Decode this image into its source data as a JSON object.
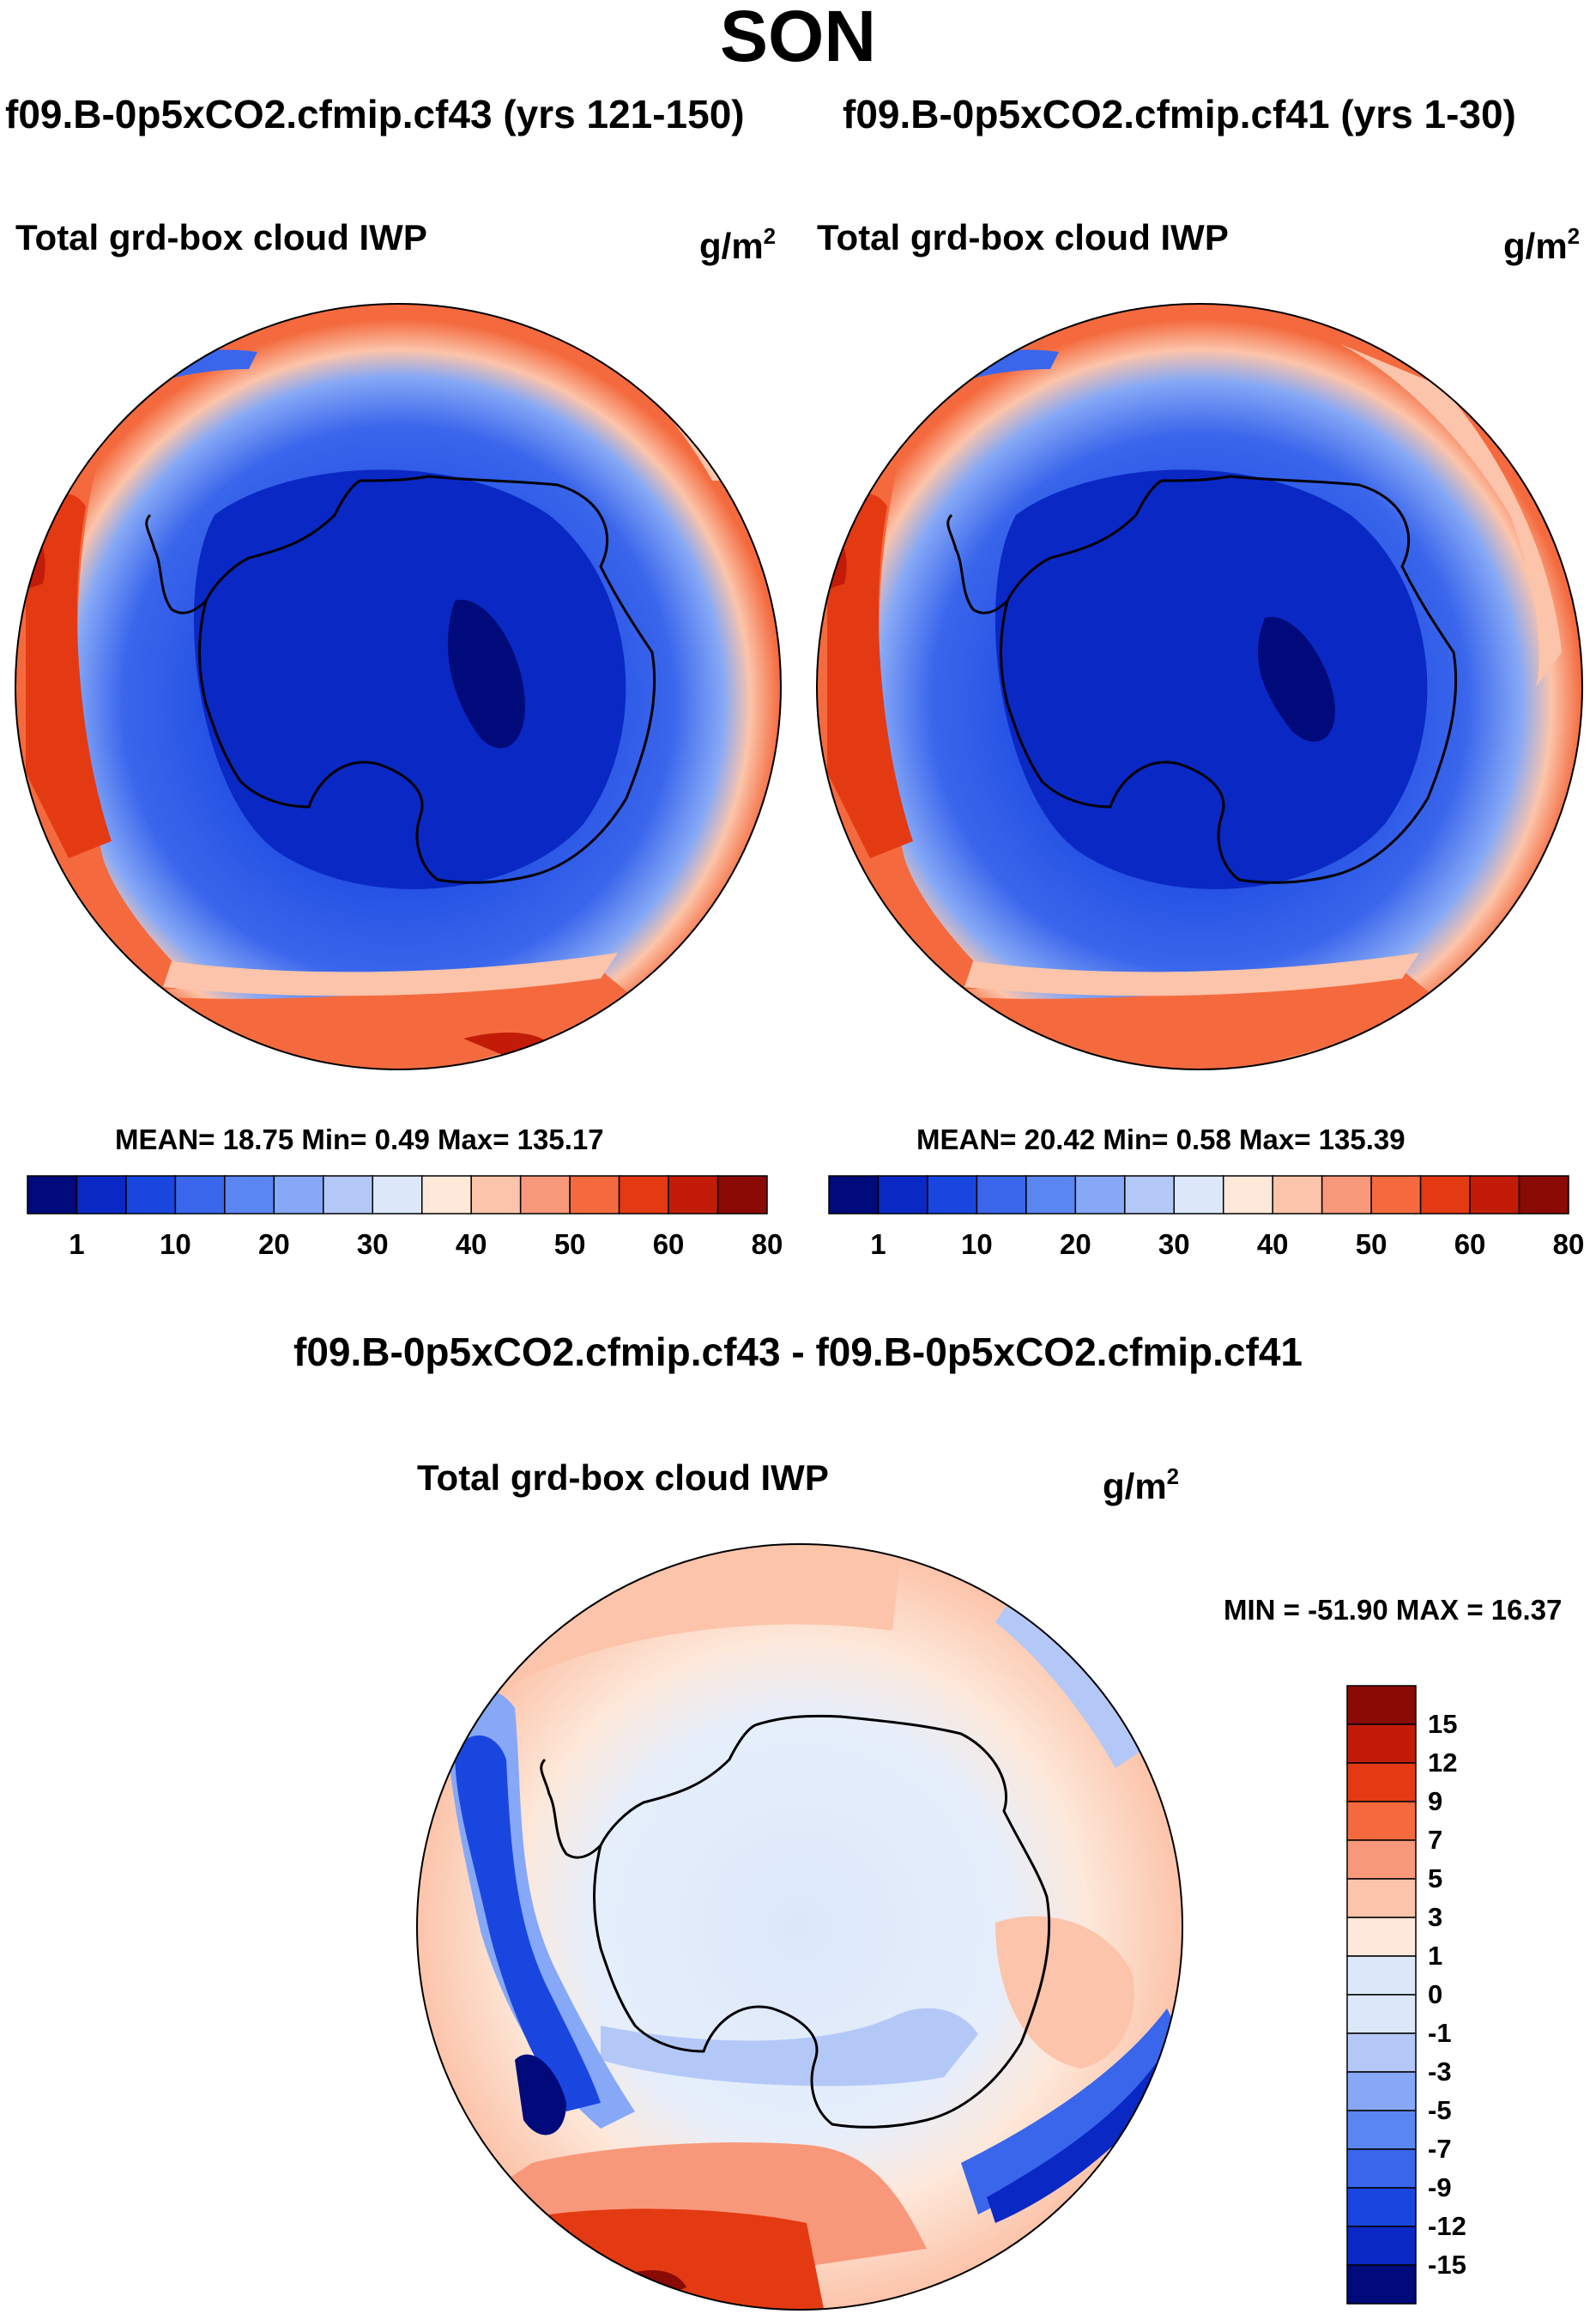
{
  "title": "SON",
  "panels": [
    {
      "case_title": "f09.B-0p5xCO2.cfmip.cf43 (yrs 121-150)",
      "variable": "Total grd-box cloud IWP",
      "units": "g/m",
      "units_exp": "2",
      "stats": "MEAN=  18.75  Min=    0.49  Max= 135.17"
    },
    {
      "case_title": "f09.B-0p5xCO2.cfmip.cf41 (yrs 1-30)",
      "variable": "Total grd-box cloud IWP",
      "units": "g/m",
      "units_exp": "2",
      "stats": "MEAN=  20.42  Min=    0.58  Max= 135.39"
    }
  ],
  "diff": {
    "title": "f09.B-0p5xCO2.cfmip.cf43 - f09.B-0p5xCO2.cfmip.cf41",
    "variable": "Total grd-box cloud IWP",
    "units": "g/m",
    "units_exp": "2",
    "stats": "MIN = -51.90 MAX =  16.37"
  },
  "chart_data": [
    {
      "type": "map-contour",
      "projection": "south-polar-stereographic",
      "title": "Total grd-box cloud IWP",
      "units": "g/m2",
      "case": "f09.B-0p5xCO2.cfmip.cf43 (yrs 121-150)",
      "mean": 18.75,
      "min": 0.49,
      "max": 135.17,
      "colorbar": {
        "orientation": "horizontal",
        "labels": [
          "1",
          "10",
          "20",
          "30",
          "40",
          "50",
          "60",
          "80"
        ],
        "colors": [
          "#000a7a",
          "#0a28c4",
          "#1a46e0",
          "#3a66ec",
          "#5a86f2",
          "#86a8f6",
          "#b4c8f8",
          "#dce8fa",
          "#fde8da",
          "#fcc4aa",
          "#f8987a",
          "#f46a3e",
          "#e43a14",
          "#c21c08",
          "#8a0a06"
        ]
      }
    },
    {
      "type": "map-contour",
      "projection": "south-polar-stereographic",
      "title": "Total grd-box cloud IWP",
      "units": "g/m2",
      "case": "f09.B-0p5xCO2.cfmip.cf41 (yrs 1-30)",
      "mean": 20.42,
      "min": 0.58,
      "max": 135.39,
      "colorbar": {
        "orientation": "horizontal",
        "labels": [
          "1",
          "10",
          "20",
          "30",
          "40",
          "50",
          "60",
          "80"
        ],
        "colors": [
          "#000a7a",
          "#0a28c4",
          "#1a46e0",
          "#3a66ec",
          "#5a86f2",
          "#86a8f6",
          "#b4c8f8",
          "#dce8fa",
          "#fde8da",
          "#fcc4aa",
          "#f8987a",
          "#f46a3e",
          "#e43a14",
          "#c21c08",
          "#8a0a06"
        ]
      }
    },
    {
      "type": "map-contour",
      "projection": "south-polar-stereographic",
      "title": "Total grd-box cloud IWP",
      "units": "g/m2",
      "case": "f09.B-0p5xCO2.cfmip.cf43 - f09.B-0p5xCO2.cfmip.cf41",
      "min": -51.9,
      "max": 16.37,
      "colorbar": {
        "orientation": "vertical",
        "labels": [
          "15",
          "12",
          "9",
          "7",
          "5",
          "3",
          "1",
          "0",
          "-1",
          "-3",
          "-5",
          "-7",
          "-9",
          "-12",
          "-15"
        ],
        "colors": [
          "#8a0a06",
          "#c21c08",
          "#e43a14",
          "#f46a3e",
          "#f8987a",
          "#fcc4aa",
          "#fde8da",
          "#dce8fa",
          "#b4c8f8",
          "#86a8f6",
          "#5a86f2",
          "#3a66ec",
          "#1a46e0",
          "#0a28c4",
          "#000a7a"
        ]
      }
    }
  ]
}
